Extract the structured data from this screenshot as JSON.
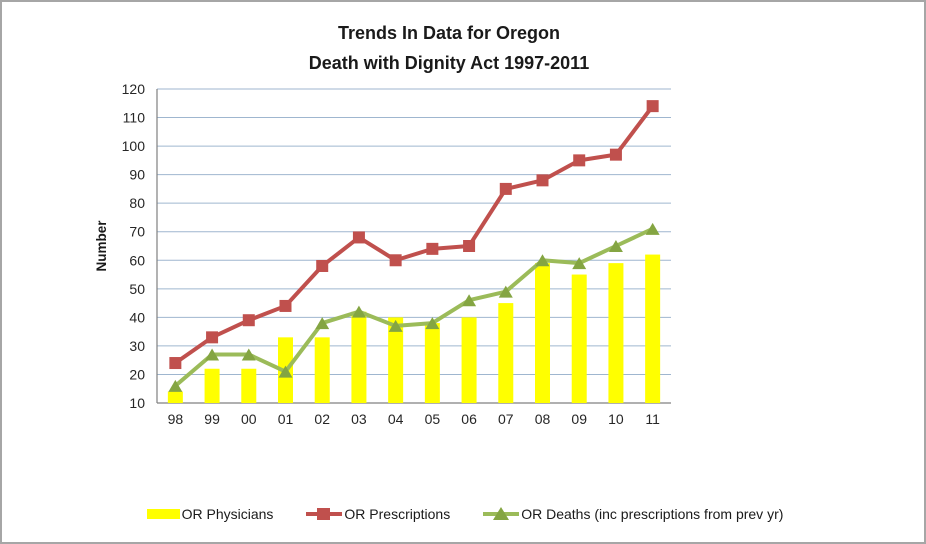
{
  "window": {
    "background": "#ffffff",
    "border_color": "#a6a6a6"
  },
  "chart_data": {
    "type": "bar+line combo",
    "title_line1": "Trends In Data for Oregon",
    "title_line2": "Death with Dignity Act 1997-2011",
    "ylabel": "Number",
    "ylim": [
      10,
      120
    ],
    "ytick_step": 10,
    "grid": true,
    "legend_position": "bottom",
    "categories": [
      "98",
      "99",
      "00",
      "01",
      "02",
      "03",
      "04",
      "05",
      "06",
      "07",
      "08",
      "09",
      "10",
      "11"
    ],
    "series": [
      {
        "name": "OR Physicians",
        "type": "bar",
        "color": "#ffff00",
        "values": [
          14,
          22,
          22,
          33,
          33,
          42,
          40,
          38,
          40,
          45,
          59,
          55,
          59,
          62
        ]
      },
      {
        "name": "OR Prescriptions",
        "type": "line",
        "marker": "square",
        "color": "#c0504d",
        "values": [
          24,
          33,
          39,
          44,
          58,
          68,
          60,
          64,
          65,
          85,
          88,
          95,
          97,
          114
        ]
      },
      {
        "name": "OR Deaths (inc prescriptions from prev yr)",
        "type": "line",
        "marker": "triangle",
        "color": "#9bbb59",
        "marker_color": "#84a542",
        "values": [
          16,
          27,
          27,
          21,
          38,
          42,
          37,
          38,
          46,
          49,
          60,
          59,
          65,
          71
        ]
      }
    ],
    "colors": {
      "gridline": "#9fb6cf",
      "axis": "#808080",
      "tick_text": "#262626",
      "title_text": "#1a1a1a"
    }
  }
}
